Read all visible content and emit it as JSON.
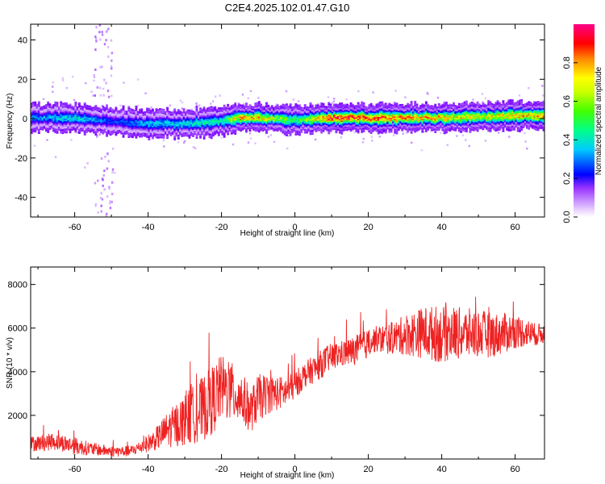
{
  "title": "C2E4.2025.102.01.47.G10",
  "chart_data": [
    {
      "type": "heatmap",
      "xlabel": "Height of straight line (km)",
      "ylabel": "Frequency (Hz)",
      "xlim": [
        -72,
        68
      ],
      "ylim": [
        -50,
        48
      ],
      "xticks": [
        -60,
        -40,
        -20,
        0,
        20,
        40,
        60
      ],
      "yticks": [
        -40,
        -20,
        0,
        20,
        40
      ],
      "colorbar": {
        "label": "Normalized spectral amplitude",
        "range": [
          0,
          1
        ],
        "ticks": [
          0.0,
          0.2,
          0.4,
          0.6,
          0.8
        ],
        "tick_labels": [
          "0.0",
          "0.2",
          "0.4",
          "0.6",
          "0.8"
        ],
        "colors": [
          "#d9b3ff",
          "#6a00ff",
          "#0000ff",
          "#00e5ff",
          "#00ff66",
          "#66ff00",
          "#ffff00",
          "#ff8000",
          "#ff0000",
          "#ff007f"
        ]
      },
      "ridge": {
        "x": [
          -72,
          -60,
          -50,
          -40,
          -30,
          -20,
          -15,
          -10,
          0,
          10,
          20,
          30,
          40,
          50,
          60,
          68
        ],
        "y": [
          0.5,
          0.5,
          -1.5,
          -2.5,
          -2.5,
          -1.0,
          0.5,
          0.5,
          -0.5,
          0.5,
          0.5,
          0.5,
          0.5,
          1.0,
          1.5,
          1.8
        ],
        "peak_amplitude": [
          0.35,
          0.45,
          0.3,
          0.4,
          0.45,
          0.5,
          0.85,
          0.8,
          0.55,
          0.95,
          0.9,
          0.85,
          0.8,
          0.75,
          0.8,
          0.85
        ]
      }
    },
    {
      "type": "line",
      "xlabel": "Height of straight line (km)",
      "ylabel": "SNR (10 * v/v)",
      "xlim": [
        -72,
        68
      ],
      "ylim": [
        0,
        8800
      ],
      "xticks": [
        -60,
        -40,
        -20,
        0,
        20,
        40,
        60
      ],
      "yticks": [
        2000,
        4000,
        6000,
        8000
      ],
      "color": "#ee2222",
      "envelope": {
        "x": [
          -72,
          -65,
          -60,
          -55,
          -50,
          -45,
          -42,
          -38,
          -35,
          -30,
          -25,
          -22,
          -20,
          -18,
          -15,
          -12,
          -10,
          -7,
          -5,
          -2,
          0,
          3,
          6,
          9,
          12,
          15,
          18,
          20,
          22,
          25,
          28,
          30,
          33,
          35,
          38,
          40,
          43,
          45,
          48,
          50,
          53,
          55,
          58,
          60,
          63,
          65,
          68
        ],
        "y": [
          700,
          800,
          600,
          450,
          350,
          350,
          550,
          900,
          1300,
          1800,
          2300,
          2800,
          3300,
          3100,
          2900,
          2200,
          2800,
          3000,
          3000,
          3100,
          3400,
          3900,
          4200,
          4600,
          4800,
          4900,
          5100,
          5300,
          5500,
          5500,
          5600,
          5700,
          5750,
          5800,
          5750,
          5700,
          5800,
          5750,
          5750,
          5750,
          5700,
          5700,
          5800,
          5850,
          5800,
          5700,
          5750
        ],
        "amplitude": [
          350,
          400,
          400,
          300,
          250,
          250,
          300,
          500,
          800,
          1200,
          1500,
          1600,
          1500,
          1400,
          1300,
          1000,
          1100,
          900,
          800,
          700,
          650,
          600,
          650,
          650,
          600,
          650,
          700,
          650,
          600,
          700,
          800,
          950,
          1100,
          1200,
          1300,
          1300,
          1250,
          1200,
          1150,
          1100,
          1050,
          1000,
          900,
          800,
          650,
          550,
          450
        ]
      }
    }
  ]
}
